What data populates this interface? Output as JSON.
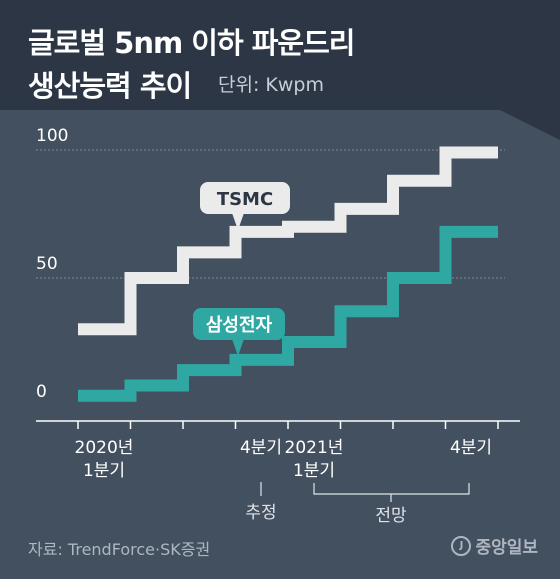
{
  "header": {
    "title_line1": "글로벌 5nm 이하 파운드리",
    "title_line2": "생산능력 추이",
    "unit": "단위: Kwpm"
  },
  "footer": {
    "source": "자료: TrendForce·SK증권",
    "logo": "중앙일보",
    "logo_mark": "J"
  },
  "colors": {
    "tsmc": "#ebebeb",
    "samsung": "#2fa8a3",
    "grid": "#7c8795",
    "axis_text": "#ffffff",
    "note_text": "#dfe3e8"
  },
  "chart_data": {
    "type": "line",
    "step": true,
    "x": [
      "2020 Q1",
      "2020 Q2",
      "2020 Q3",
      "2020 Q4",
      "2021 Q1",
      "2021 Q2",
      "2021 Q3",
      "2021 Q4"
    ],
    "series": [
      {
        "name": "TSMC",
        "values": [
          30,
          50,
          60,
          68,
          70,
          77,
          88,
          99
        ]
      },
      {
        "name": "삼성전자",
        "values": [
          4,
          8,
          14,
          18,
          25,
          37,
          50,
          68
        ]
      }
    ],
    "ylim": [
      0,
      100
    ],
    "yticks": [
      {
        "value": 100,
        "label": "100"
      },
      {
        "value": 50,
        "label": "50"
      },
      {
        "value": 0,
        "label": "0"
      }
    ],
    "xtick_labels": [
      {
        "line1": "2020년",
        "line2": "1분기"
      },
      {
        "line1": "4분기",
        "line2": ""
      },
      {
        "line1": "2021년",
        "line2": "1분기"
      },
      {
        "line1": "4분기",
        "line2": ""
      }
    ],
    "annotations": {
      "estimate": "추정",
      "forecast": "전망"
    }
  }
}
